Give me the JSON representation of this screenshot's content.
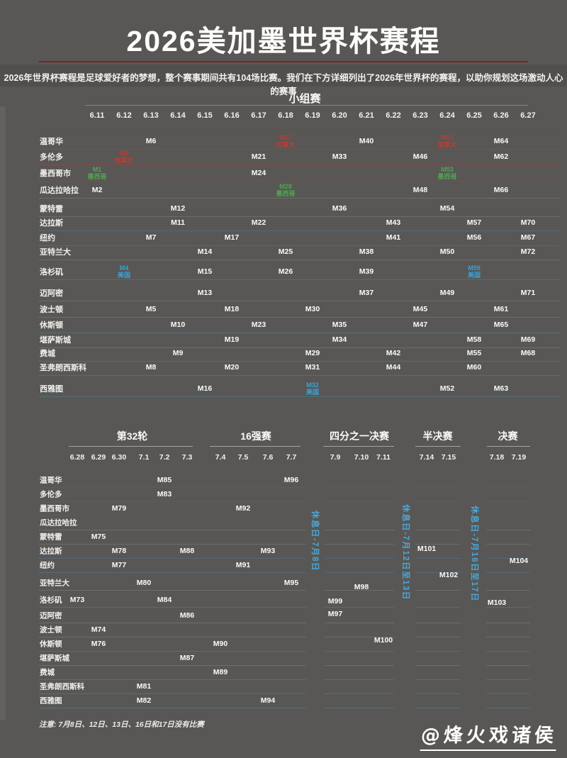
{
  "page": {
    "title": "2026美加墨世界杯赛程",
    "subtitle": "2026年世界杯赛程是足球爱好者的梦想，整个赛事期间共有104场比赛。我们在下方详细列出了2026年世界杯的赛程，以助你规划这场激动人心的赛事",
    "note": "注意: 7月8日、12日、13日、16日和17日没有比赛",
    "watermark": "@烽火戏诸侯"
  },
  "colors": {
    "background": "#585755",
    "title_rule_red": "#7a2522",
    "header_rule_red": "#8a3b36",
    "canada_red": "#c23a31",
    "mexico_green": "#4ca84f",
    "usa_blue": "#36a3d9",
    "rest_blue": "#4aa7d9"
  },
  "chart_data": {
    "type": "table",
    "title": "2026美加墨世界杯赛程",
    "cities": [
      "温哥华",
      "多伦多",
      "墨西哥市",
      "瓜达拉哈拉",
      "蒙特雷",
      "达拉斯",
      "纽约",
      "亚特兰大",
      "洛杉矶",
      "迈阿密",
      "波士顿",
      "休斯顿",
      "堪萨斯城",
      "费城",
      "圣弗朗西斯科",
      "西雅图"
    ],
    "group_stage": {
      "name": "小组赛",
      "dates": [
        "6.11",
        "6.12",
        "6.13",
        "6.14",
        "6.15",
        "6.16",
        "6.17",
        "6.18",
        "6.19",
        "6.20",
        "6.21",
        "6.22",
        "6.23",
        "6.24",
        "6.25",
        "6.26",
        "6.27"
      ],
      "matches": [
        {
          "city": "墨西哥市",
          "date": "6.11",
          "m": "M1",
          "team": "墨西哥",
          "hl": "mexico_green"
        },
        {
          "city": "瓜达拉哈拉",
          "date": "6.11",
          "m": "M2"
        },
        {
          "city": "多伦多",
          "date": "6.12",
          "m": "M3",
          "team": "加拿大",
          "hl": "canada_red"
        },
        {
          "city": "洛杉矶",
          "date": "6.12",
          "m": "M4",
          "team": "美国",
          "hl": "usa_blue"
        },
        {
          "city": "波士顿",
          "date": "6.13",
          "m": "M5"
        },
        {
          "city": "温哥华",
          "date": "6.13",
          "m": "M6"
        },
        {
          "city": "纽约",
          "date": "6.13",
          "m": "M7"
        },
        {
          "city": "圣弗朗西斯科",
          "date": "6.13",
          "m": "M8"
        },
        {
          "city": "费城",
          "date": "6.14",
          "m": "M9"
        },
        {
          "city": "休斯顿",
          "date": "6.14",
          "m": "M10"
        },
        {
          "city": "达拉斯",
          "date": "6.14",
          "m": "M11"
        },
        {
          "city": "蒙特雷",
          "date": "6.14",
          "m": "M12"
        },
        {
          "city": "迈阿密",
          "date": "6.15",
          "m": "M13"
        },
        {
          "city": "亚特兰大",
          "date": "6.15",
          "m": "M14"
        },
        {
          "city": "洛杉矶",
          "date": "6.15",
          "m": "M15"
        },
        {
          "city": "西雅图",
          "date": "6.15",
          "m": "M16"
        },
        {
          "city": "纽约",
          "date": "6.16",
          "m": "M17"
        },
        {
          "city": "波士顿",
          "date": "6.16",
          "m": "M18"
        },
        {
          "city": "堪萨斯城",
          "date": "6.16",
          "m": "M19"
        },
        {
          "city": "圣弗朗西斯科",
          "date": "6.16",
          "m": "M20"
        },
        {
          "city": "多伦多",
          "date": "6.17",
          "m": "M21"
        },
        {
          "city": "达拉斯",
          "date": "6.17",
          "m": "M22"
        },
        {
          "city": "休斯顿",
          "date": "6.17",
          "m": "M23"
        },
        {
          "city": "墨西哥市",
          "date": "6.17",
          "m": "M24"
        },
        {
          "city": "亚特兰大",
          "date": "6.18",
          "m": "M25"
        },
        {
          "city": "洛杉矶",
          "date": "6.18",
          "m": "M26"
        },
        {
          "city": "温哥华",
          "date": "6.18",
          "m": "M27",
          "team": "加拿大",
          "hl": "canada_red"
        },
        {
          "city": "瓜达拉哈拉",
          "date": "6.18",
          "m": "M28",
          "team": "墨西哥",
          "hl": "mexico_green"
        },
        {
          "city": "费城",
          "date": "6.19",
          "m": "M29"
        },
        {
          "city": "波士顿",
          "date": "6.19",
          "m": "M30"
        },
        {
          "city": "圣弗朗西斯科",
          "date": "6.19",
          "m": "M31"
        },
        {
          "city": "西雅图",
          "date": "6.19",
          "m": "M32",
          "team": "美国",
          "hl": "usa_blue"
        },
        {
          "city": "多伦多",
          "date": "6.20",
          "m": "M33"
        },
        {
          "city": "堪萨斯城",
          "date": "6.20",
          "m": "M34"
        },
        {
          "city": "休斯顿",
          "date": "6.20",
          "m": "M35"
        },
        {
          "city": "蒙特雷",
          "date": "6.20",
          "m": "M36"
        },
        {
          "city": "迈阿密",
          "date": "6.21",
          "m": "M37"
        },
        {
          "city": "亚特兰大",
          "date": "6.21",
          "m": "M38"
        },
        {
          "city": "洛杉矶",
          "date": "6.21",
          "m": "M39"
        },
        {
          "city": "温哥华",
          "date": "6.21",
          "m": "M40"
        },
        {
          "city": "纽约",
          "date": "6.22",
          "m": "M41"
        },
        {
          "city": "费城",
          "date": "6.22",
          "m": "M42"
        },
        {
          "city": "达拉斯",
          "date": "6.22",
          "m": "M43"
        },
        {
          "city": "圣弗朗西斯科",
          "date": "6.22",
          "m": "M44"
        },
        {
          "city": "波士顿",
          "date": "6.23",
          "m": "M45"
        },
        {
          "city": "多伦多",
          "date": "6.23",
          "m": "M46"
        },
        {
          "city": "休斯顿",
          "date": "6.23",
          "m": "M47"
        },
        {
          "city": "瓜达拉哈拉",
          "date": "6.23",
          "m": "M48"
        },
        {
          "city": "迈阿密",
          "date": "6.24",
          "m": "M49"
        },
        {
          "city": "亚特兰大",
          "date": "6.24",
          "m": "M50"
        },
        {
          "city": "温哥华",
          "date": "6.24",
          "m": "M51",
          "team": "加拿大",
          "hl": "canada_red"
        },
        {
          "city": "西雅图",
          "date": "6.24",
          "m": "M52"
        },
        {
          "city": "墨西哥市",
          "date": "6.24",
          "m": "M53",
          "team": "墨西哥",
          "hl": "mexico_green"
        },
        {
          "city": "蒙特雷",
          "date": "6.24",
          "m": "M54"
        },
        {
          "city": "费城",
          "date": "6.25",
          "m": "M55"
        },
        {
          "city": "纽约",
          "date": "6.25",
          "m": "M56"
        },
        {
          "city": "达拉斯",
          "date": "6.25",
          "m": "M57"
        },
        {
          "city": "堪萨斯城",
          "date": "6.25",
          "m": "M58"
        },
        {
          "city": "洛杉矶",
          "date": "6.25",
          "m": "M59",
          "team": "美国",
          "hl": "usa_blue"
        },
        {
          "city": "圣弗朗西斯科",
          "date": "6.25",
          "m": "M60"
        },
        {
          "city": "波士顿",
          "date": "6.26",
          "m": "M61"
        },
        {
          "city": "多伦多",
          "date": "6.26",
          "m": "M62"
        },
        {
          "city": "西雅图",
          "date": "6.26",
          "m": "M63"
        },
        {
          "city": "温哥华",
          "date": "6.26",
          "m": "M64"
        },
        {
          "city": "休斯顿",
          "date": "6.26",
          "m": "M65"
        },
        {
          "city": "瓜达拉哈拉",
          "date": "6.26",
          "m": "M66"
        },
        {
          "city": "纽约",
          "date": "6.27",
          "m": "M67"
        },
        {
          "city": "费城",
          "date": "6.27",
          "m": "M68"
        },
        {
          "city": "堪萨斯城",
          "date": "6.27",
          "m": "M69"
        },
        {
          "city": "达拉斯",
          "date": "6.27",
          "m": "M70"
        },
        {
          "city": "迈阿密",
          "date": "6.27",
          "m": "M71"
        },
        {
          "city": "亚特兰大",
          "date": "6.27",
          "m": "M72"
        }
      ]
    },
    "knockout": {
      "groups": [
        {
          "name": "第32轮",
          "dates": [
            "6.28",
            "6.29",
            "6.30",
            "7.1",
            "7.2",
            "7.3"
          ]
        },
        {
          "name": "16强赛",
          "dates": [
            "7.4",
            "7.5",
            "7.6",
            "7.7"
          ]
        },
        {
          "name": "四分之一决赛",
          "dates": [
            "7.9",
            "7.10",
            "7.11"
          ]
        },
        {
          "name": "半决赛",
          "dates": [
            "7.14",
            "7.15"
          ]
        },
        {
          "name": "决赛",
          "dates": [
            "7.18",
            "7.19"
          ]
        }
      ],
      "rest_days": [
        "休息日-7月8日",
        "休息日-7月12日至13日",
        "休息日-7月16日至17日"
      ],
      "matches": [
        {
          "city": "洛杉矶",
          "date": "6.28",
          "m": "M73"
        },
        {
          "city": "波士顿",
          "date": "6.29",
          "m": "M74"
        },
        {
          "city": "蒙特雷",
          "date": "6.29",
          "m": "M75"
        },
        {
          "city": "休斯顿",
          "date": "6.29",
          "m": "M76"
        },
        {
          "city": "纽约",
          "date": "6.30",
          "m": "M77"
        },
        {
          "city": "达拉斯",
          "date": "6.30",
          "m": "M78"
        },
        {
          "city": "墨西哥市",
          "date": "6.30",
          "m": "M79"
        },
        {
          "city": "亚特兰大",
          "date": "7.1",
          "m": "M80"
        },
        {
          "city": "圣弗朗西斯科",
          "date": "7.1",
          "m": "M81"
        },
        {
          "city": "西雅图",
          "date": "7.1",
          "m": "M82"
        },
        {
          "city": "多伦多",
          "date": "7.2",
          "m": "M83"
        },
        {
          "city": "洛杉矶",
          "date": "7.2",
          "m": "M84"
        },
        {
          "city": "温哥华",
          "date": "7.2",
          "m": "M85"
        },
        {
          "city": "迈阿密",
          "date": "7.3",
          "m": "M86"
        },
        {
          "city": "堪萨斯城",
          "date": "7.3",
          "m": "M87"
        },
        {
          "city": "达拉斯",
          "date": "7.3",
          "m": "M88"
        },
        {
          "city": "费城",
          "date": "7.4",
          "m": "M89"
        },
        {
          "city": "休斯顿",
          "date": "7.4",
          "m": "M90"
        },
        {
          "city": "纽约",
          "date": "7.5",
          "m": "M91"
        },
        {
          "city": "墨西哥市",
          "date": "7.5",
          "m": "M92"
        },
        {
          "city": "达拉斯",
          "date": "7.6",
          "m": "M93"
        },
        {
          "city": "西雅图",
          "date": "7.6",
          "m": "M94"
        },
        {
          "city": "亚特兰大",
          "date": "7.7",
          "m": "M95"
        },
        {
          "city": "温哥华",
          "date": "7.7",
          "m": "M96"
        },
        {
          "city": "迈阿密",
          "date": "7.9",
          "m": "M97"
        },
        {
          "city": "亚特兰大",
          "date": "7.10",
          "m": "M98"
        },
        {
          "city": "洛杉矶",
          "date": "7.9",
          "m": "M99"
        },
        {
          "city": "休斯顿",
          "date": "7.11",
          "m": "M100"
        },
        {
          "city": "达拉斯",
          "date": "7.14",
          "m": "M101"
        },
        {
          "city": "亚特兰大",
          "date": "7.15",
          "m": "M102"
        },
        {
          "city": "洛杉矶",
          "date": "7.18",
          "m": "M103"
        },
        {
          "city": "纽约",
          "date": "7.19",
          "m": "M104"
        }
      ]
    }
  }
}
